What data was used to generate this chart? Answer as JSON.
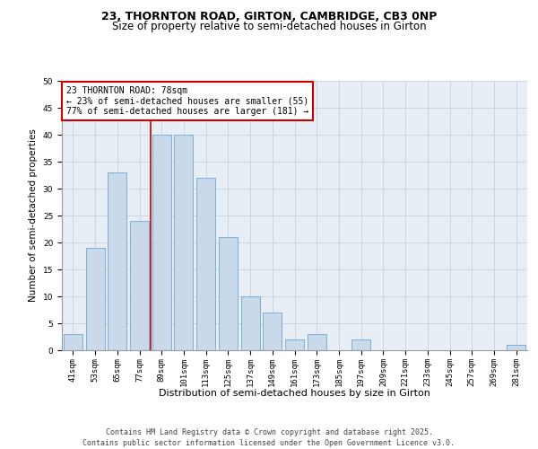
{
  "title_line1": "23, THORNTON ROAD, GIRTON, CAMBRIDGE, CB3 0NP",
  "title_line2": "Size of property relative to semi-detached houses in Girton",
  "xlabel": "Distribution of semi-detached houses by size in Girton",
  "ylabel": "Number of semi-detached properties",
  "categories": [
    "41sqm",
    "53sqm",
    "65sqm",
    "77sqm",
    "89sqm",
    "101sqm",
    "113sqm",
    "125sqm",
    "137sqm",
    "149sqm",
    "161sqm",
    "173sqm",
    "185sqm",
    "197sqm",
    "209sqm",
    "221sqm",
    "233sqm",
    "245sqm",
    "257sqm",
    "269sqm",
    "281sqm"
  ],
  "values": [
    3,
    19,
    33,
    24,
    40,
    40,
    32,
    21,
    10,
    7,
    2,
    3,
    0,
    2,
    0,
    0,
    0,
    0,
    0,
    0,
    1
  ],
  "bar_color": "#c9d9ea",
  "bar_edge_color": "#7bafd4",
  "highlight_line_index": 3,
  "highlight_line_color": "#cc0000",
  "ylim": [
    0,
    50
  ],
  "yticks": [
    0,
    5,
    10,
    15,
    20,
    25,
    30,
    35,
    40,
    45,
    50
  ],
  "annotation_title": "23 THORNTON ROAD: 78sqm",
  "annotation_line1": "← 23% of semi-detached houses are smaller (55)",
  "annotation_line2": "77% of semi-detached houses are larger (181) →",
  "annotation_box_color": "#cc0000",
  "footer_line1": "Contains HM Land Registry data © Crown copyright and database right 2025.",
  "footer_line2": "Contains public sector information licensed under the Open Government Licence v3.0.",
  "bg_color": "#e8eef5",
  "grid_color": "#c8d0dc",
  "title1_fontsize": 9,
  "title2_fontsize": 8.5,
  "xlabel_fontsize": 8,
  "ylabel_fontsize": 7.5,
  "tick_fontsize": 6.5,
  "annotation_fontsize": 7,
  "footer_fontsize": 6
}
